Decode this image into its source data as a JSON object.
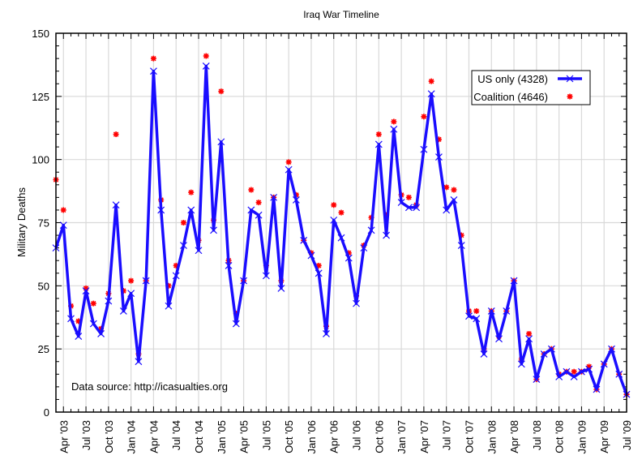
{
  "chart_data": {
    "type": "line",
    "title": "Iraq War Timeline",
    "xlabel": "",
    "ylabel": "Military Deaths",
    "ylim": [
      0,
      150
    ],
    "yticks": [
      "0",
      "25",
      "50",
      "75",
      "100",
      "125",
      "150"
    ],
    "ytick_values": [
      0,
      25,
      50,
      75,
      100,
      125,
      150
    ],
    "xtick_labels": [
      "Apr '03",
      "Jul '03",
      "Oct '03",
      "Jan '04",
      "Apr '04",
      "Jul '04",
      "Oct '04",
      "Jan '05",
      "Apr '05",
      "Jul '05",
      "Oct '05",
      "Jan '06",
      "Apr '06",
      "Jul '06",
      "Oct '06",
      "Jan '07",
      "Apr '07",
      "Jul '07",
      "Oct '07",
      "Jan '08",
      "Apr '08",
      "Jul '08",
      "Oct '08",
      "Jan '09",
      "Apr '09",
      "Jul '09"
    ],
    "x_start": "Mar '03",
    "x_end": "Jul '09",
    "grid": true,
    "legend_position": "top-right",
    "annotation": "Data source: http://icasualties.org",
    "series": [
      {
        "name": "US only (4328)",
        "color": "#1a0dff",
        "style": "line-x-markers",
        "values": [
          65,
          74,
          37,
          30,
          48,
          35,
          31,
          44,
          82,
          40,
          47,
          20,
          52,
          135,
          80,
          42,
          54,
          66,
          80,
          64,
          137,
          72,
          107,
          58,
          35,
          52,
          80,
          78,
          54,
          85,
          49,
          96,
          84,
          68,
          62,
          55,
          31,
          76,
          69,
          61,
          43,
          65,
          72,
          106,
          70,
          112,
          83,
          81,
          81,
          104,
          126,
          101,
          80,
          84,
          66,
          38,
          37,
          23,
          40,
          29,
          40,
          52,
          19,
          29,
          13,
          23,
          25,
          14,
          16,
          14,
          16,
          17,
          9,
          19,
          25,
          15,
          7
        ]
      },
      {
        "name": "Coalition (4646)",
        "color": "#ff0000",
        "style": "star-markers",
        "values": [
          92,
          80,
          42,
          36,
          49,
          43,
          33,
          47,
          110,
          48,
          52,
          23,
          52,
          140,
          84,
          50,
          58,
          75,
          87,
          68,
          141,
          76,
          127,
          60,
          39,
          52,
          88,
          83,
          58,
          85,
          52,
          99,
          86,
          68,
          63,
          58,
          34,
          82,
          79,
          63,
          46,
          66,
          77,
          110,
          78,
          115,
          86,
          85,
          82,
          117,
          131,
          108,
          89,
          88,
          70,
          40,
          40,
          25,
          40,
          30,
          40,
          52,
          21,
          31,
          13,
          23,
          25,
          15,
          16,
          16,
          16,
          18,
          9,
          19,
          25,
          15,
          7
        ]
      }
    ]
  }
}
